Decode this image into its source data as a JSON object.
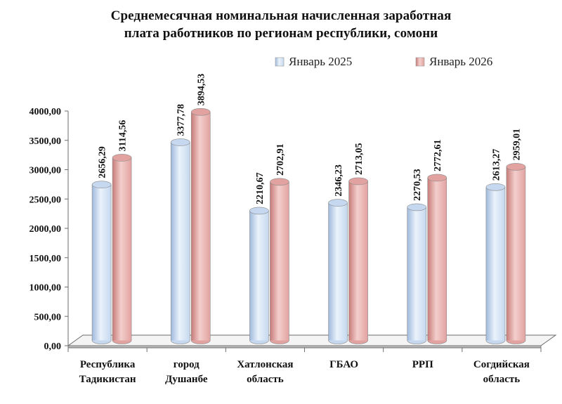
{
  "chart_data": {
    "type": "bar",
    "title_lines": [
      "Среднемесячная номинальная начисленная заработная",
      "плата работников по регионам республики, сомони"
    ],
    "categories": [
      [
        "Республика",
        "Тадикистан"
      ],
      [
        "город",
        "Душанбе"
      ],
      [
        "Хатлонская",
        "область"
      ],
      [
        "ГБАО"
      ],
      [
        "РРП"
      ],
      [
        "Согдийская",
        "область"
      ]
    ],
    "series": [
      {
        "name": "Январь 2025",
        "color": "#c5d8ef",
        "values": [
          2656.29,
          3377.78,
          2210.67,
          2346.23,
          2270.53,
          2613.27
        ],
        "labels": [
          "2656,29",
          "3377,78",
          "2210,67",
          "2346,23",
          "2270,53",
          "2613,27"
        ]
      },
      {
        "name": "Январь 2026",
        "color": "#e2a2a0",
        "values": [
          3114.56,
          3894.53,
          2702.91,
          2713.05,
          2772.61,
          2959.01
        ],
        "labels": [
          "3114,56",
          "3894,53",
          "2702,91",
          "2713,05",
          "2772,61",
          "2959,01"
        ]
      }
    ],
    "ylim": [
      0,
      4000
    ],
    "yticks": [
      "0,00",
      "500,00",
      "1000,00",
      "1500,00",
      "2000,00",
      "2500,00",
      "3000,00",
      "3500,00",
      "4000,00"
    ],
    "grid": false,
    "legend": "top-right"
  }
}
